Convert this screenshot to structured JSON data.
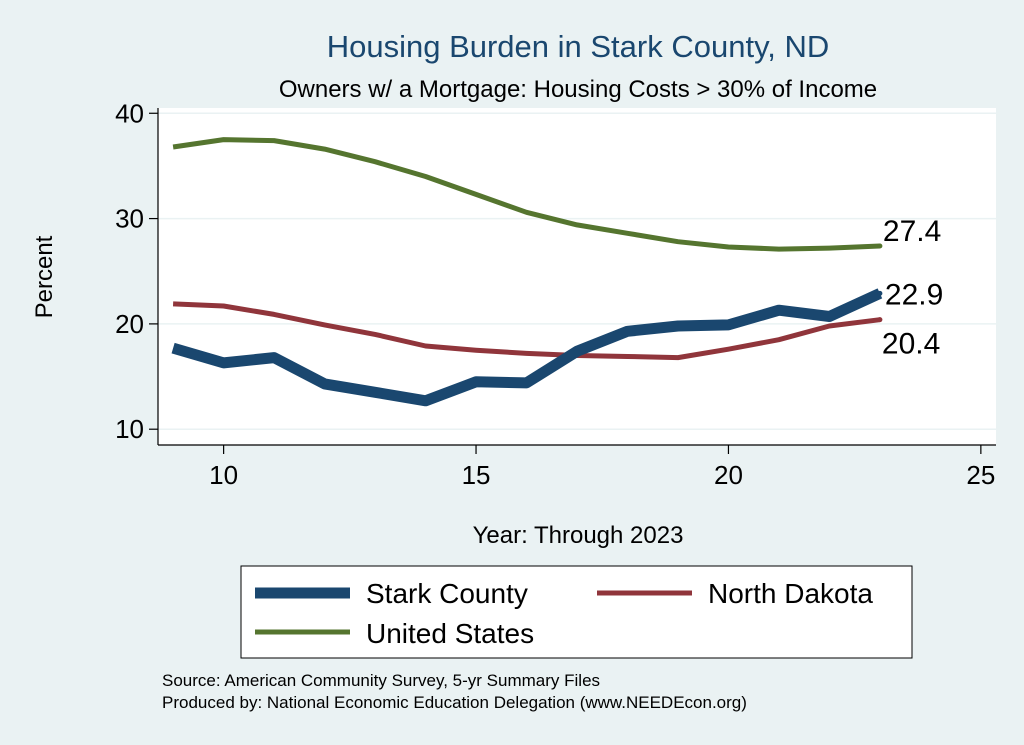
{
  "chart_data": {
    "type": "line",
    "title": "Housing Burden in Stark County, ND",
    "subtitle": "Owners w/ a Mortgage: Housing Costs > 30% of Income",
    "xlabel": "Year: Through 2023",
    "ylabel": "Percent",
    "xlim": [
      8.7,
      25.3
    ],
    "ylim": [
      8.5,
      40.5
    ],
    "xticks": [
      10,
      15,
      20,
      25
    ],
    "yticks": [
      10,
      20,
      30,
      40
    ],
    "x": [
      9,
      10,
      11,
      12,
      13,
      14,
      15,
      16,
      17,
      18,
      19,
      20,
      21,
      22,
      23
    ],
    "series": [
      {
        "name": "Stark County",
        "color": "#1a476f",
        "values": [
          17.7,
          16.3,
          16.8,
          14.3,
          13.5,
          12.7,
          14.5,
          14.4,
          17.4,
          19.3,
          19.8,
          19.9,
          21.3,
          20.7,
          22.9
        ],
        "end_label": "22.9"
      },
      {
        "name": "North Dakota",
        "color": "#90353b",
        "values": [
          21.9,
          21.7,
          20.9,
          19.9,
          19.0,
          17.9,
          17.5,
          17.2,
          17.0,
          16.9,
          16.8,
          17.6,
          18.5,
          19.8,
          20.4
        ],
        "end_label": "20.4"
      },
      {
        "name": "United States",
        "color": "#55752f",
        "values": [
          36.8,
          37.5,
          37.4,
          36.6,
          35.4,
          34.0,
          32.3,
          30.6,
          29.4,
          28.6,
          27.8,
          27.3,
          27.1,
          27.2,
          27.4
        ],
        "end_label": "27.4"
      }
    ],
    "legend_position": "bottom"
  },
  "footer": {
    "source_line": "Source: American Community Survey, 5-yr Summary Files",
    "produced_line": "Produced by: National Economic Education Delegation (www.NEEDEcon.org)"
  }
}
